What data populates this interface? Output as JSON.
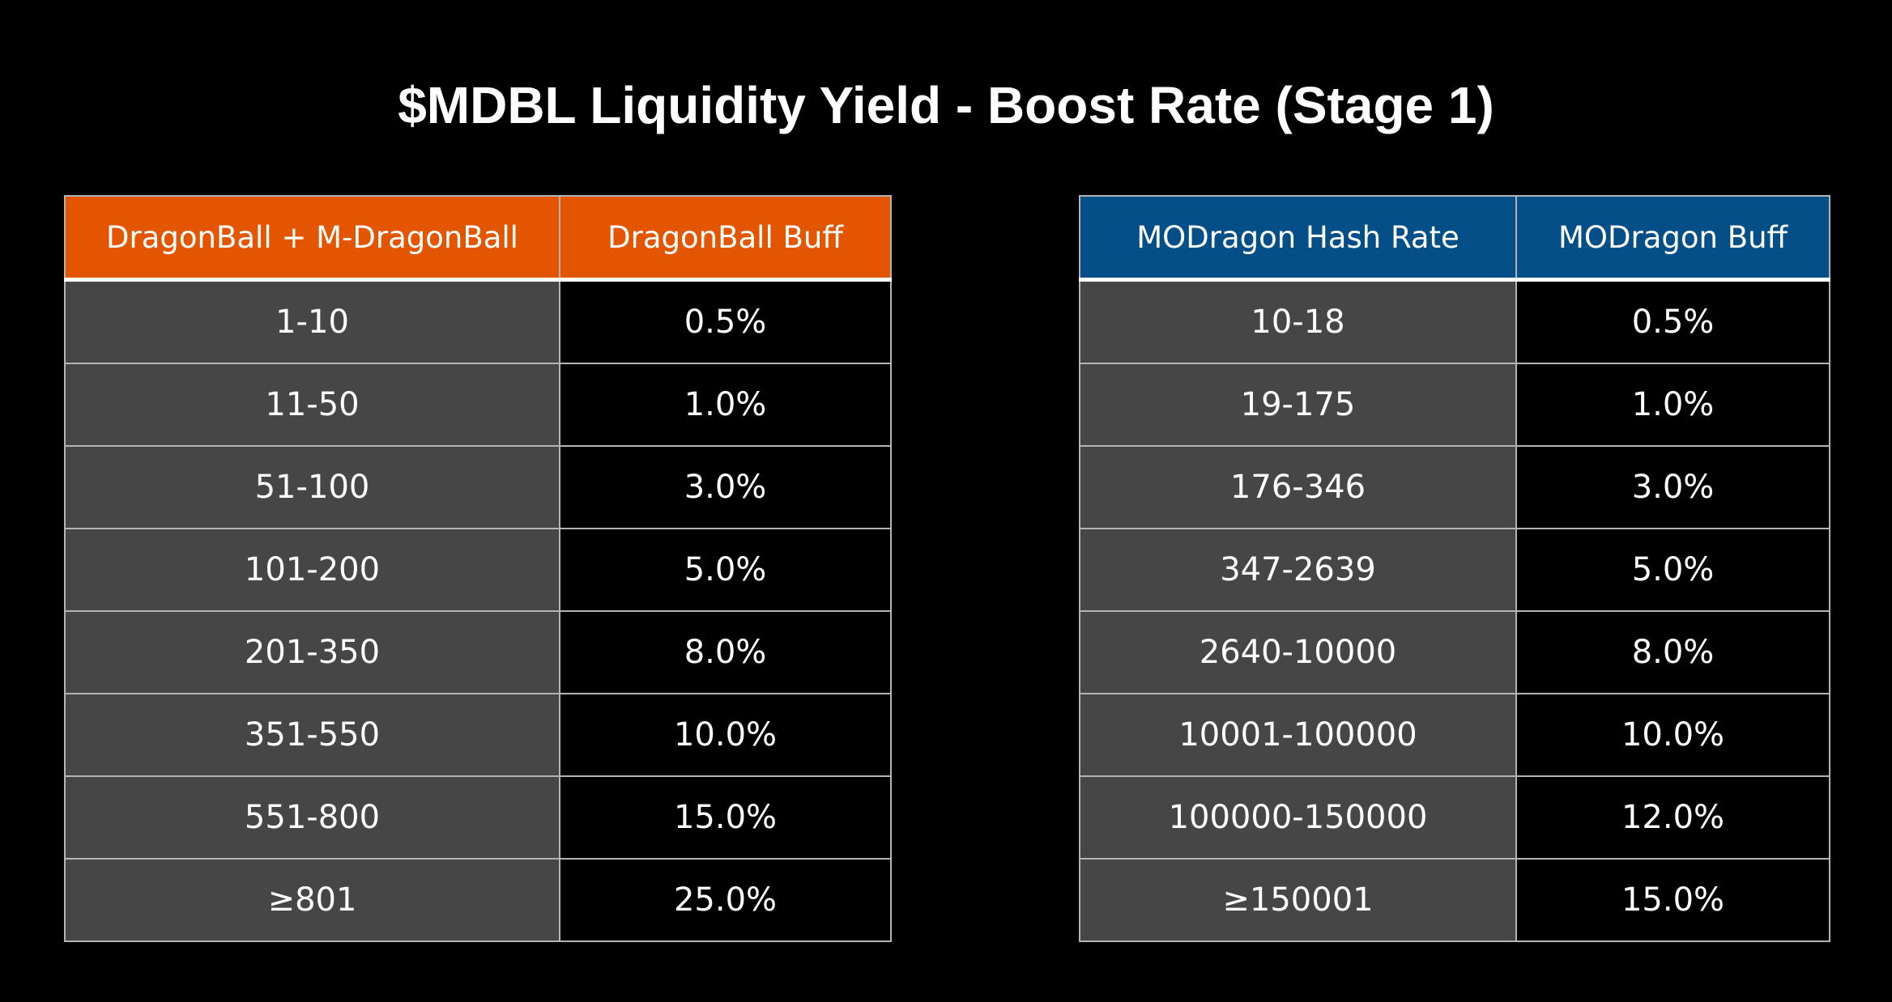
{
  "title": "$MDBL Liquidity Yield - Boost Rate (Stage 1)",
  "tables": [
    {
      "headers": [
        "DragonBall + M-DragonBall",
        "DragonBall Buff"
      ],
      "header_color": "#e45500",
      "rows": [
        [
          "1-10",
          "0.5%"
        ],
        [
          "11-50",
          "1.0%"
        ],
        [
          "51-100",
          "3.0%"
        ],
        [
          "101-200",
          "5.0%"
        ],
        [
          "201-350",
          "8.0%"
        ],
        [
          "351-550",
          "10.0%"
        ],
        [
          "551-800",
          "15.0%"
        ],
        [
          "≥801",
          "25.0%"
        ]
      ]
    },
    {
      "headers": [
        "MODragon Hash Rate",
        "MODragon Buff"
      ],
      "header_color": "#044f88",
      "rows": [
        [
          "10-18",
          "0.5%"
        ],
        [
          "19-175",
          "1.0%"
        ],
        [
          "176-346",
          "3.0%"
        ],
        [
          "347-2639",
          "5.0%"
        ],
        [
          "2640-10000",
          "8.0%"
        ],
        [
          "10001-100000",
          "10.0%"
        ],
        [
          "100000-150000",
          "12.0%"
        ],
        [
          "≥150001",
          "15.0%"
        ]
      ]
    }
  ]
}
